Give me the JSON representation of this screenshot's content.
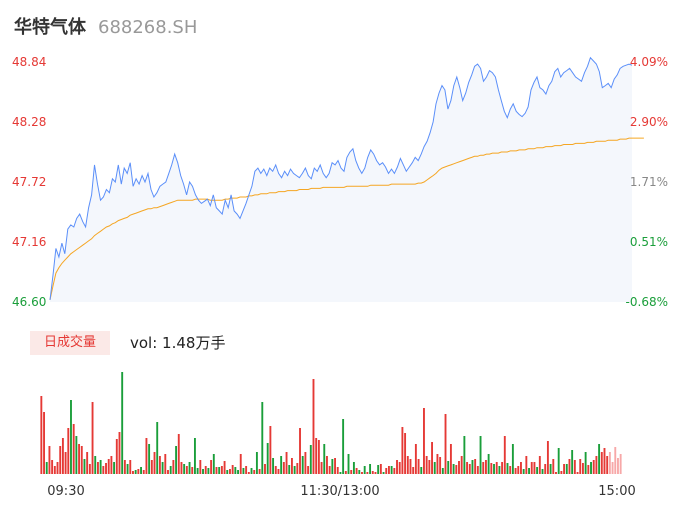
{
  "header": {
    "name": "华特气体",
    "code": "688268.SH"
  },
  "colors": {
    "price": "#5b8ff9",
    "avg": "#f5a623",
    "up": "#e53935",
    "down": "#1a9e3a",
    "neutral": "#888888",
    "fill": "#f4f7fc"
  },
  "volume_panel": {
    "tag": "日成交量",
    "vol_text": "vol: 1.48万手"
  },
  "chart_data": [
    {
      "type": "line",
      "title": "",
      "x_ticks": [
        "09:30",
        "11:30/13:00",
        "15:00"
      ],
      "y_left_ticks": [
        "48.84",
        "48.28",
        "47.72",
        "47.16",
        "46.60"
      ],
      "y_right_ticks": [
        "4.09%",
        "2.90%",
        "1.71%",
        "0.51%",
        "-0.68%"
      ],
      "ylim": [
        46.6,
        48.84
      ],
      "prev_close": 46.92,
      "grid": false,
      "series": [
        {
          "role": "price",
          "values": [
            46.62,
            46.85,
            47.1,
            47.02,
            47.15,
            47.05,
            47.28,
            47.32,
            47.3,
            47.38,
            47.42,
            47.35,
            47.3,
            47.48,
            47.6,
            47.88,
            47.7,
            47.55,
            47.58,
            47.65,
            47.62,
            47.75,
            47.72,
            47.88,
            47.7,
            47.85,
            47.8,
            47.9,
            47.68,
            47.75,
            47.7,
            47.78,
            47.72,
            47.8,
            47.65,
            47.58,
            47.62,
            47.68,
            47.7,
            47.72,
            47.8,
            47.88,
            47.98,
            47.9,
            47.78,
            47.7,
            47.6,
            47.72,
            47.68,
            47.6,
            47.55,
            47.52,
            47.54,
            47.56,
            47.5,
            47.6,
            47.48,
            47.45,
            47.42,
            47.55,
            47.48,
            47.6,
            47.45,
            47.42,
            47.38,
            47.45,
            47.52,
            47.6,
            47.68,
            47.82,
            47.85,
            47.8,
            47.84,
            47.78,
            47.85,
            47.82,
            47.88,
            47.8,
            47.76,
            47.82,
            47.78,
            47.84,
            47.8,
            47.78,
            47.76,
            47.8,
            47.85,
            47.78,
            47.75,
            47.85,
            47.82,
            47.88,
            47.8,
            47.76,
            47.8,
            47.9,
            47.88,
            47.92,
            47.85,
            47.82,
            47.95,
            48.0,
            48.03,
            47.92,
            47.85,
            47.8,
            47.85,
            47.95,
            48.02,
            47.98,
            47.92,
            47.88,
            47.9,
            47.86,
            47.8,
            47.84,
            47.8,
            47.86,
            47.94,
            47.88,
            47.82,
            47.86,
            47.9,
            47.95,
            47.92,
            47.98,
            48.05,
            48.1,
            48.18,
            48.28,
            48.45,
            48.55,
            48.62,
            48.58,
            48.4,
            48.48,
            48.62,
            48.7,
            48.6,
            48.48,
            48.55,
            48.65,
            48.72,
            48.8,
            48.82,
            48.78,
            48.66,
            48.7,
            48.76,
            48.74,
            48.7,
            48.58,
            48.48,
            48.38,
            48.32,
            48.4,
            48.45,
            48.38,
            48.35,
            48.33,
            48.36,
            48.42,
            48.58,
            48.65,
            48.7,
            48.6,
            48.58,
            48.54,
            48.62,
            48.66,
            48.75,
            48.78,
            48.7,
            48.74,
            48.76,
            48.78,
            48.74,
            48.7,
            48.68,
            48.66,
            48.74,
            48.8,
            48.88,
            48.85,
            48.82,
            48.75,
            48.6,
            48.62,
            48.64,
            48.6,
            48.68,
            48.72,
            48.78,
            48.8,
            48.81,
            48.82,
            48.81
          ]
        },
        {
          "role": "average",
          "values": [
            46.62,
            46.75,
            46.87,
            46.92,
            46.96,
            46.99,
            47.02,
            47.05,
            47.07,
            47.09,
            47.11,
            47.13,
            47.15,
            47.17,
            47.19,
            47.22,
            47.24,
            47.26,
            47.28,
            47.3,
            47.31,
            47.33,
            47.34,
            47.36,
            47.37,
            47.38,
            47.39,
            47.41,
            47.42,
            47.43,
            47.44,
            47.45,
            47.46,
            47.47,
            47.47,
            47.48,
            47.48,
            47.49,
            47.5,
            47.51,
            47.52,
            47.53,
            47.54,
            47.55,
            47.55,
            47.55,
            47.55,
            47.55,
            47.55,
            47.56,
            47.56,
            47.56,
            47.56,
            47.56,
            47.55,
            47.55,
            47.55,
            47.55,
            47.55,
            47.56,
            47.56,
            47.57,
            47.57,
            47.57,
            47.58,
            47.58,
            47.58,
            47.59,
            47.59,
            47.6,
            47.6,
            47.61,
            47.61,
            47.61,
            47.62,
            47.62,
            47.62,
            47.63,
            47.63,
            47.63,
            47.64,
            47.64,
            47.64,
            47.64,
            47.65,
            47.65,
            47.65,
            47.65,
            47.66,
            47.66,
            47.66,
            47.66,
            47.67,
            47.67,
            47.67,
            47.67,
            47.67,
            47.67,
            47.67,
            47.67,
            47.68,
            47.68,
            47.68,
            47.68,
            47.68,
            47.68,
            47.68,
            47.68,
            47.69,
            47.69,
            47.69,
            47.69,
            47.69,
            47.69,
            47.69,
            47.7,
            47.7,
            47.7,
            47.7,
            47.7,
            47.7,
            47.7,
            47.7,
            47.7,
            47.71,
            47.71,
            47.72,
            47.74,
            47.76,
            47.78,
            47.8,
            47.83,
            47.85,
            47.86,
            47.87,
            47.88,
            47.89,
            47.9,
            47.91,
            47.92,
            47.93,
            47.94,
            47.95,
            47.96,
            47.96,
            47.97,
            47.97,
            47.98,
            47.98,
            47.99,
            47.99,
            47.99,
            48.0,
            48.0,
            48.0,
            48.01,
            48.01,
            48.01,
            48.02,
            48.02,
            48.02,
            48.03,
            48.03,
            48.03,
            48.04,
            48.04,
            48.04,
            48.05,
            48.05,
            48.05,
            48.06,
            48.06,
            48.06,
            48.07,
            48.07,
            48.07,
            48.07,
            48.08,
            48.08,
            48.08,
            48.08,
            48.09,
            48.09,
            48.09,
            48.1,
            48.1,
            48.1,
            48.1,
            48.11,
            48.11,
            48.11,
            48.11,
            48.12,
            48.12,
            48.12,
            48.13,
            48.13,
            48.13,
            48.13,
            48.13,
            48.13
          ]
        }
      ]
    },
    {
      "type": "bar",
      "title": "",
      "ylim": [
        0,
        104
      ],
      "values": [
        78,
        62,
        12,
        28,
        14,
        8,
        12,
        28,
        36,
        22,
        46,
        74,
        50,
        38,
        30,
        28,
        15,
        22,
        10,
        72,
        18,
        12,
        14,
        8,
        11,
        15,
        18,
        12,
        35,
        42,
        102,
        14,
        10,
        14,
        3,
        4,
        5,
        7,
        4,
        36,
        30,
        14,
        22,
        52,
        18,
        12,
        20,
        4,
        8,
        14,
        28,
        40,
        12,
        10,
        8,
        12,
        7,
        36,
        6,
        14,
        5,
        8,
        6,
        14,
        20,
        7,
        7,
        8,
        13,
        4,
        5,
        9,
        7,
        4,
        20,
        6,
        8,
        2,
        6,
        4,
        22,
        5,
        72,
        10,
        31,
        48,
        16,
        8,
        5,
        18,
        12,
        22,
        9,
        16,
        8,
        11,
        46,
        18,
        22,
        8,
        29,
        95,
        36,
        34,
        12,
        30,
        18,
        8,
        15,
        16,
        7,
        2,
        55,
        3,
        20,
        4,
        12,
        6,
        4,
        2,
        8,
        2,
        10,
        3,
        2,
        9,
        10,
        2,
        6,
        8,
        8,
        6,
        14,
        12,
        47,
        41,
        18,
        15,
        7,
        30,
        15,
        7,
        66,
        18,
        14,
        32,
        12,
        20,
        17,
        6,
        60,
        13,
        30,
        10,
        9,
        13,
        18,
        38,
        12,
        10,
        14,
        15,
        8,
        38,
        12,
        14,
        20,
        11,
        10,
        12,
        8,
        12,
        38,
        11,
        8,
        30,
        6,
        8,
        12,
        5,
        18,
        6,
        12,
        12,
        7,
        18,
        5,
        10,
        33,
        10,
        15,
        2,
        26,
        3,
        10,
        10,
        15,
        24,
        14,
        2,
        15,
        11,
        22,
        9,
        12,
        14,
        18,
        30,
        22,
        26,
        18,
        22,
        12,
        27,
        16,
        20
      ],
      "colors": [
        "up",
        "up",
        "down",
        "up",
        "up",
        "up",
        "up",
        "up",
        "up",
        "up",
        "up",
        "down",
        "up",
        "down",
        "up",
        "up",
        "down",
        "up",
        "up",
        "up",
        "down",
        "up",
        "down",
        "up",
        "up",
        "up",
        "up",
        "down",
        "up",
        "up",
        "down",
        "up",
        "down",
        "up",
        "up",
        "down",
        "up",
        "down",
        "up",
        "up",
        "down",
        "up",
        "up",
        "down",
        "up",
        "down",
        "up",
        "up",
        "down",
        "up",
        "down",
        "up",
        "up",
        "down",
        "up",
        "down",
        "up",
        "down",
        "down",
        "up",
        "down",
        "up",
        "down",
        "up",
        "down",
        "up",
        "down",
        "up",
        "up",
        "down",
        "up",
        "up",
        "down",
        "down",
        "up",
        "down",
        "up",
        "up",
        "down",
        "up",
        "down",
        "up",
        "down",
        "up",
        "down",
        "up",
        "down",
        "up",
        "up",
        "down",
        "up",
        "up",
        "down",
        "up",
        "down",
        "up",
        "up",
        "down",
        "up",
        "up",
        "down",
        "up",
        "up",
        "up",
        "up",
        "down",
        "up",
        "up",
        "down",
        "up",
        "up",
        "down",
        "down",
        "up",
        "down",
        "up",
        "down",
        "up",
        "down",
        "up",
        "down",
        "up",
        "down",
        "up",
        "up",
        "down",
        "up",
        "down",
        "up",
        "up",
        "down",
        "up",
        "up",
        "up",
        "up",
        "up",
        "up",
        "up",
        "up",
        "up",
        "up",
        "down",
        "up",
        "up",
        "up",
        "up",
        "down",
        "up",
        "up",
        "down",
        "up",
        "down",
        "up",
        "down",
        "up",
        "up",
        "up",
        "down",
        "up",
        "up",
        "down",
        "up",
        "up",
        "down",
        "up",
        "up",
        "down",
        "up",
        "down",
        "up",
        "down",
        "up",
        "up",
        "down",
        "up",
        "down",
        "up",
        "up",
        "up",
        "down",
        "up",
        "down",
        "up",
        "up",
        "down",
        "up",
        "down",
        "up",
        "up",
        "down",
        "up",
        "up",
        "down",
        "up",
        "up",
        "down",
        "up",
        "down",
        "up",
        "up",
        "up",
        "up",
        "down",
        "up",
        "down",
        "up",
        "up",
        "down",
        "up",
        "up",
        "up",
        "neutral"
      ]
    }
  ]
}
